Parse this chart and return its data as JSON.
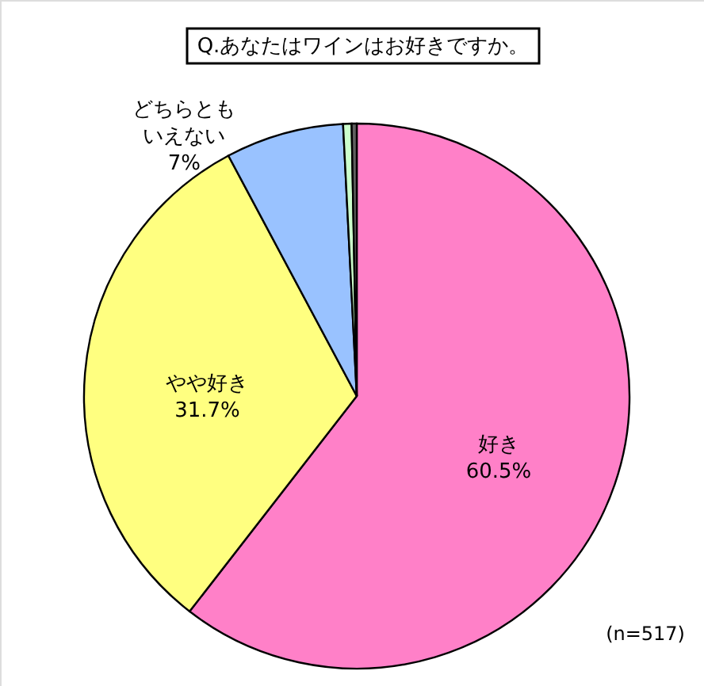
{
  "chart_data": {
    "type": "pie",
    "title": "Q.あなたはワインはお好きですか。",
    "categories": [
      "好き",
      "やや好き",
      "どちらともいえない",
      null,
      null
    ],
    "values": [
      60.5,
      31.7,
      7,
      0.5,
      0.3
    ],
    "colors": [
      "#ff80c8",
      "#ffff80",
      "#99c2ff",
      "#ccffcc",
      "#606060"
    ],
    "value_labels": [
      "60.5%",
      "31.7%",
      "7%",
      null,
      null
    ],
    "annotations": [
      "(n=517)"
    ]
  }
}
